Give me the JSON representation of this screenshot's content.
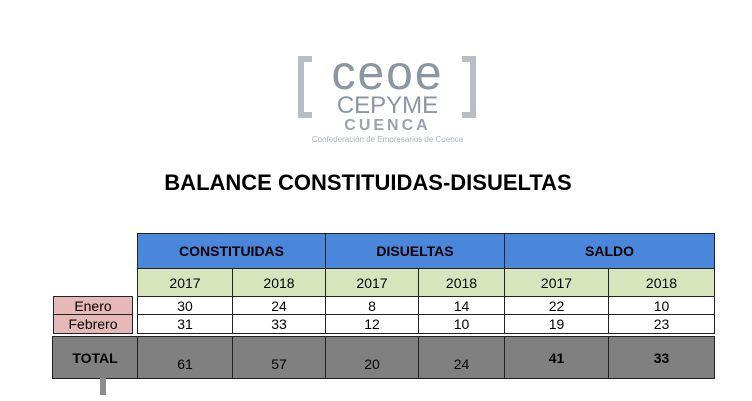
{
  "logo": {
    "mark": "ceoe",
    "name": "CEPYME",
    "city": "CUENCA",
    "tagline": "Confederación de Empresarios de Cuenca"
  },
  "title": "BALANCE CONSTITUIDAS-DISUELTAS",
  "table": {
    "groups": [
      "CONSTITUIDAS",
      "DISUELTAS",
      "SALDO"
    ],
    "years": [
      "2017",
      "2018",
      "2017",
      "2018",
      "2017",
      "2018"
    ],
    "rows": [
      {
        "label": "Enero",
        "values": [
          30,
          24,
          8,
          14,
          22,
          10
        ]
      },
      {
        "label": "Febrero",
        "values": [
          31,
          33,
          12,
          10,
          19,
          23
        ]
      },
      {
        "label": "TOTAL",
        "values": [
          61,
          57,
          20,
          24,
          41,
          33
        ]
      }
    ]
  }
}
